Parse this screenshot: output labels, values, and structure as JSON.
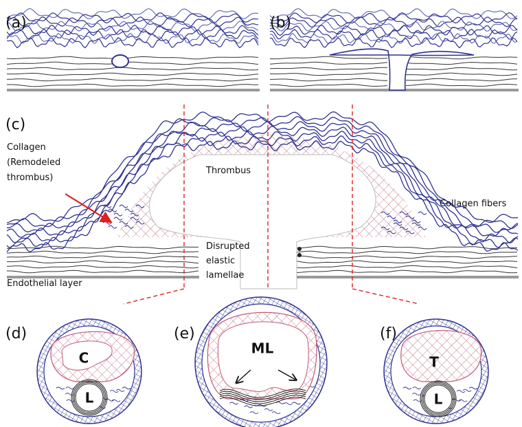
{
  "panels": [
    {
      "label": "(a)"
    },
    {
      "label": "(b)"
    },
    {
      "label": "(c)"
    },
    {
      "label": "(d)"
    },
    {
      "label": "(e)"
    },
    {
      "label": "(f)"
    }
  ],
  "annotations": {
    "collagen_remodeled": [
      "Collagen",
      "(Remodeled",
      "thrombus)"
    ],
    "thrombus": "Thrombus",
    "collagen_fibers": "Collagen fibers",
    "disrupted_lamellae": [
      "Disrupted",
      "elastic",
      "lamellae"
    ],
    "endothelial_layer": "Endothelial layer"
  },
  "cross_sections": [
    {
      "labels": [
        "C",
        "L"
      ]
    },
    {
      "labels": [
        "ML"
      ]
    },
    {
      "labels": [
        "T",
        "L"
      ]
    }
  ]
}
